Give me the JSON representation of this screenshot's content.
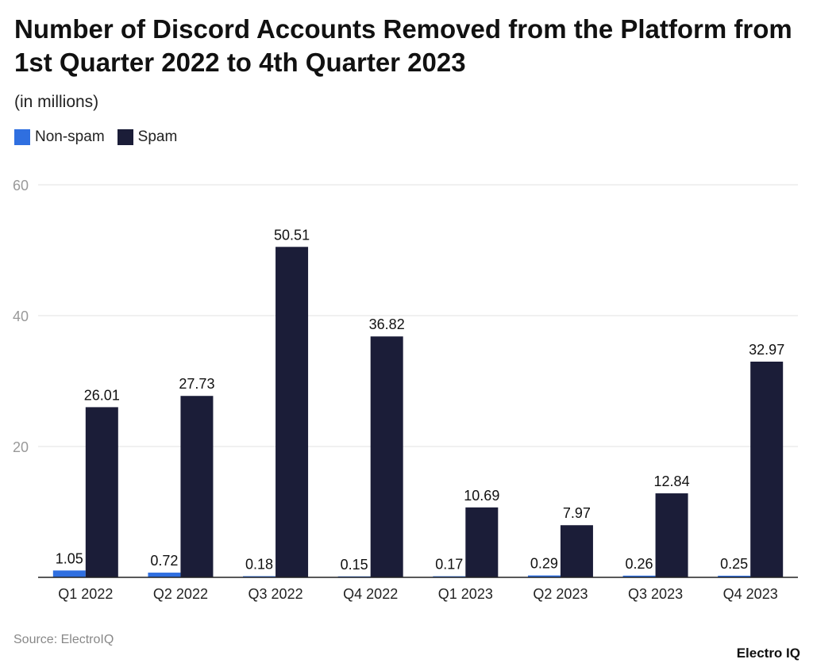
{
  "chart_data": {
    "type": "bar",
    "title": "Number of Discord Accounts Removed from the Platform from 1st Quarter 2022 to 4th Quarter 2023",
    "subtitle": "(in millions)",
    "categories": [
      "Q1 2022",
      "Q2 2022",
      "Q3 2022",
      "Q4 2022",
      "Q1 2023",
      "Q2 2023",
      "Q3 2023",
      "Q4 2023"
    ],
    "series": [
      {
        "name": "Non-spam",
        "color": "#2f6fe0",
        "values": [
          1.05,
          0.72,
          0.18,
          0.15,
          0.17,
          0.29,
          0.26,
          0.25
        ]
      },
      {
        "name": "Spam",
        "color": "#1b1d38",
        "values": [
          26.01,
          27.73,
          50.51,
          36.82,
          10.69,
          7.97,
          12.84,
          32.97
        ]
      }
    ],
    "ylim": [
      0,
      60
    ],
    "yticks": [
      20,
      40,
      60
    ],
    "grid": true,
    "legend": "top-left",
    "source": "Source: ElectroIQ",
    "logo": "Electro IQ"
  }
}
